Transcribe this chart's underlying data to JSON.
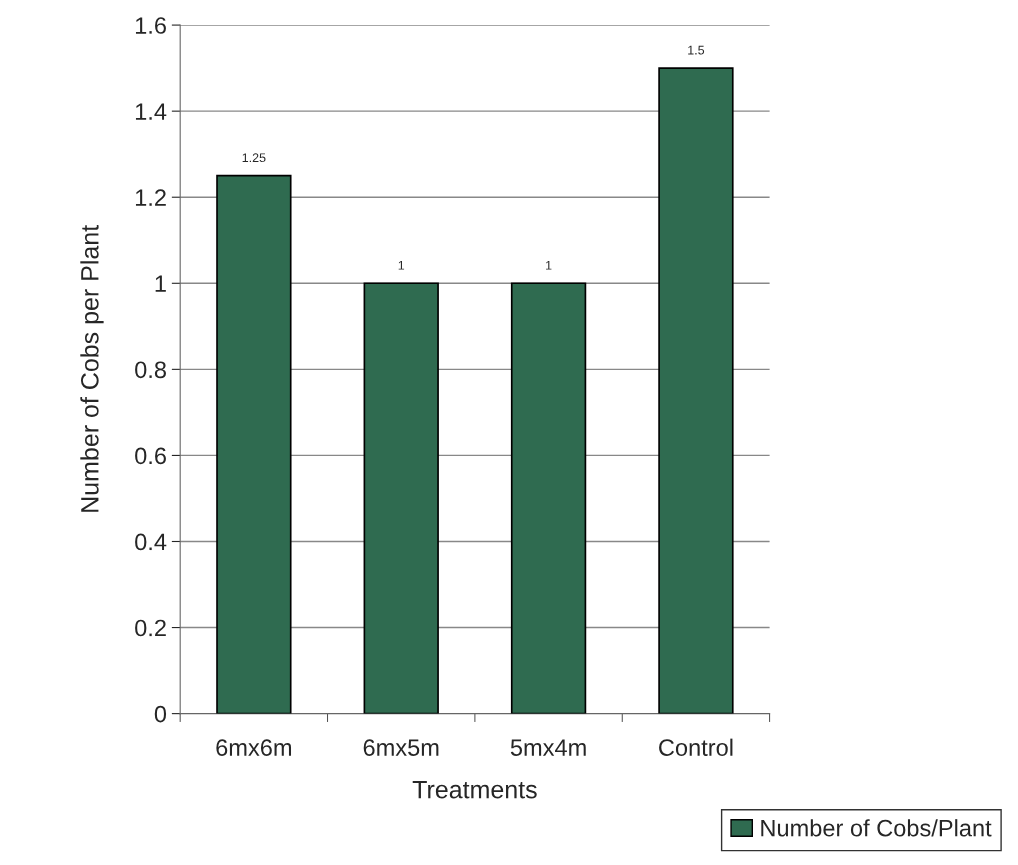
{
  "chart_data": {
    "type": "bar",
    "xlabel": "Treatments",
    "ylabel": "Number of Cobs per Plant",
    "categories": [
      "6mx6m",
      "6mx5m",
      "5mx4m",
      "Control"
    ],
    "series": [
      {
        "name": "Number of Cobs/Plant",
        "color": "#2f6b50",
        "values": [
          1.25,
          1,
          1,
          1.5
        ]
      }
    ],
    "ylim": [
      0,
      1.6
    ],
    "yticks": [
      0,
      0.2,
      0.4,
      0.6,
      0.8,
      1,
      1.2,
      1.4,
      1.6
    ],
    "grid": "y",
    "legend": "bottom right",
    "data_labels": true
  }
}
